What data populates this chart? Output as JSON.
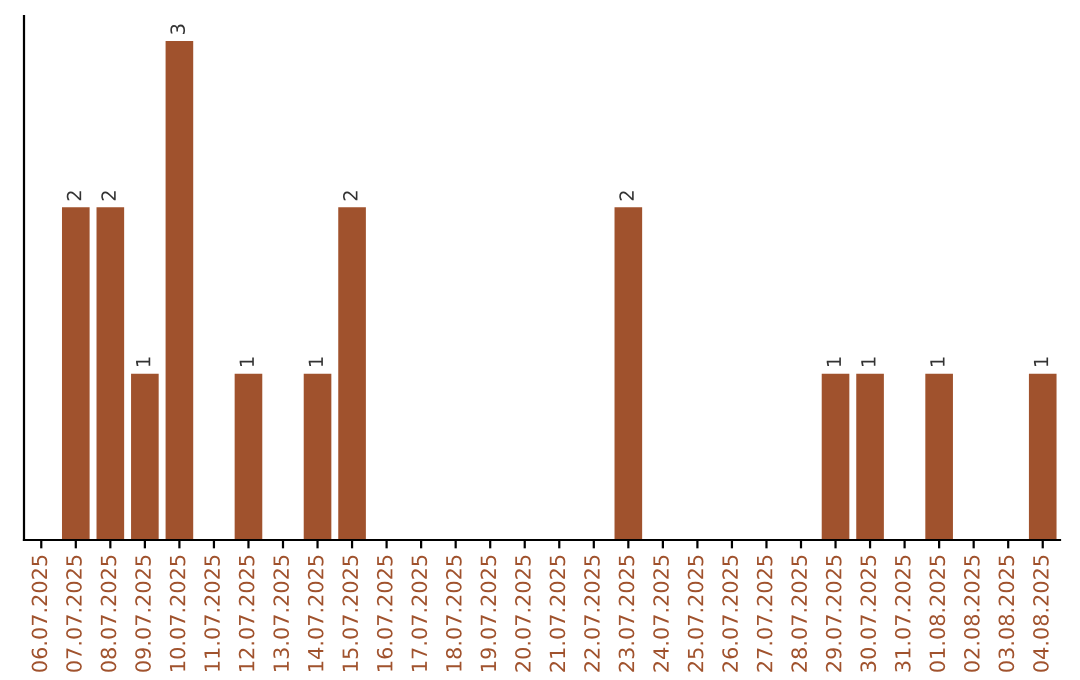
{
  "chart_data": {
    "type": "bar",
    "categories": [
      "06.07.2025",
      "07.07.2025",
      "08.07.2025",
      "09.07.2025",
      "10.07.2025",
      "11.07.2025",
      "12.07.2025",
      "13.07.2025",
      "14.07.2025",
      "15.07.2025",
      "16.07.2025",
      "17.07.2025",
      "18.07.2025",
      "19.07.2025",
      "20.07.2025",
      "21.07.2025",
      "22.07.2025",
      "23.07.2025",
      "24.07.2025",
      "25.07.2025",
      "26.07.2025",
      "27.07.2025",
      "28.07.2025",
      "29.07.2025",
      "30.07.2025",
      "31.07.2025",
      "01.08.2025",
      "02.08.2025",
      "03.08.2025",
      "04.08.2025"
    ],
    "values": [
      0,
      2,
      2,
      1,
      3,
      0,
      1,
      0,
      1,
      2,
      0,
      0,
      0,
      0,
      0,
      0,
      0,
      2,
      0,
      0,
      0,
      0,
      0,
      1,
      1,
      0,
      1,
      0,
      0,
      1
    ],
    "value_labels": [
      null,
      "2",
      "2",
      "1",
      "3",
      null,
      "1",
      null,
      "1",
      "2",
      null,
      null,
      null,
      null,
      null,
      null,
      null,
      "2",
      null,
      null,
      null,
      null,
      null,
      "1",
      "1",
      null,
      "1",
      null,
      null,
      "1"
    ],
    "color": "#a0522d",
    "ylim": [
      0,
      3.15
    ],
    "tick_labels": "x",
    "grid": false,
    "legend": false
  }
}
